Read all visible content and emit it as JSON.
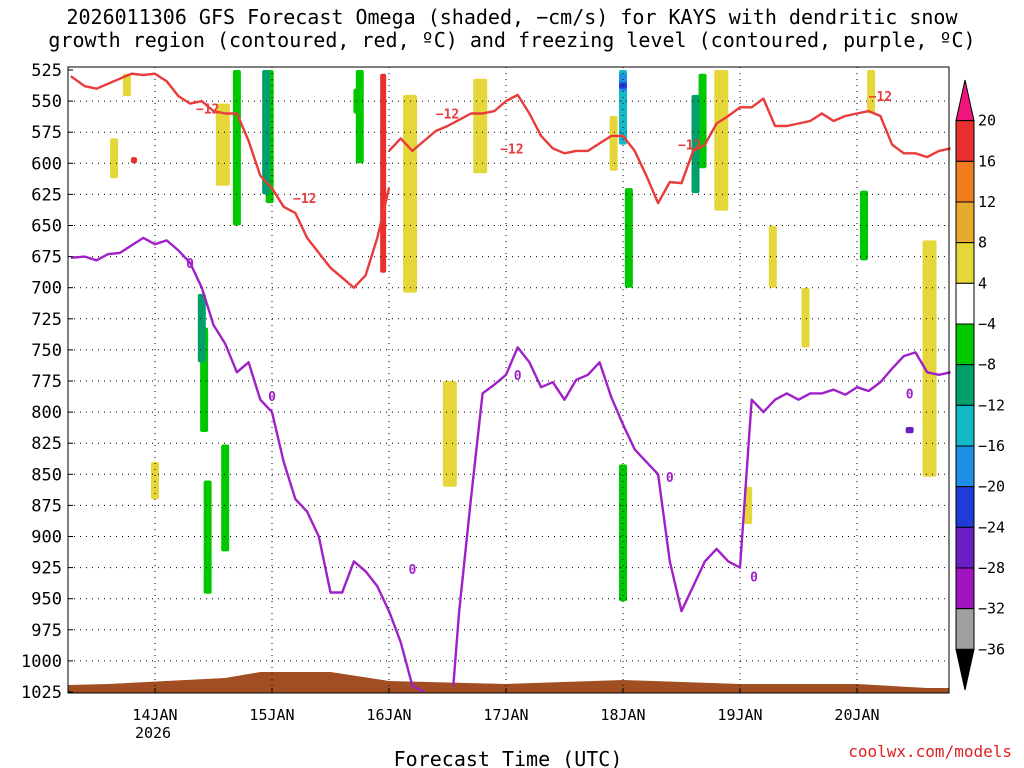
{
  "title": "2026011306 GFS Forecast Omega (shaded, −cm/s) for KAYS with dendritic snow\ngrowth region (contoured, red, ºC) and freezing level (contoured, purple, ºC)",
  "watermark": "coolwx.com/models",
  "chart_data": {
    "type": "heatmap",
    "xlabel": "Forecast Time (UTC)",
    "x_ticks": [
      {
        "label": "14JAN",
        "sublabel": "2026"
      },
      {
        "label": "15JAN",
        "sublabel": ""
      },
      {
        "label": "16JAN",
        "sublabel": ""
      },
      {
        "label": "17JAN",
        "sublabel": ""
      },
      {
        "label": "18JAN",
        "sublabel": ""
      },
      {
        "label": "19JAN",
        "sublabel": ""
      },
      {
        "label": "20JAN",
        "sublabel": ""
      }
    ],
    "x_range_days": [
      -0.74,
      6.82
    ],
    "y_ticks": [
      525,
      550,
      575,
      600,
      625,
      650,
      675,
      700,
      725,
      750,
      775,
      800,
      825,
      850,
      875,
      900,
      925,
      950,
      975,
      1000,
      1025
    ],
    "y_range_hpa": [
      525,
      1025
    ],
    "grid": true,
    "colorbar": {
      "labels": [
        "20",
        "16",
        "12",
        "8",
        "4",
        "−4",
        "−8",
        "−12",
        "−16",
        "−20",
        "−24",
        "−28",
        "−32",
        "−36"
      ],
      "colors": [
        "#f0157d",
        "#e8302e",
        "#f07c1f",
        "#e6aa2c",
        "#e5d63a",
        "#ffffff",
        "#00c800",
        "#009f6c",
        "#14b9c8",
        "#1e8fe6",
        "#1f3cd8",
        "#6a1fc4",
        "#a014c0",
        "#a0a0a0",
        "#000000"
      ]
    },
    "omega_regions": [
      {
        "color": "#e5d63a",
        "cells": [
          [
            -0.24,
            528,
            546
          ],
          [
            0.58,
            552,
            618
          ],
          [
            2.78,
            532,
            608
          ],
          [
            3.92,
            562,
            606
          ],
          [
            4.84,
            525,
            638
          ],
          [
            6.12,
            525,
            560
          ],
          [
            6.62,
            662,
            852
          ],
          [
            5.56,
            700,
            748
          ],
          [
            2.18,
            545,
            704
          ],
          [
            5.28,
            650,
            700
          ],
          [
            5.07,
            860,
            890
          ],
          [
            -0.35,
            580,
            612
          ],
          [
            0.0,
            840,
            870
          ],
          [
            2.52,
            775,
            860
          ]
        ]
      },
      {
        "color": "#00c800",
        "cells": [
          [
            0.7,
            525,
            650
          ],
          [
            0.98,
            525,
            632
          ],
          [
            0.42,
            732,
            816
          ],
          [
            0.6,
            826,
            912
          ],
          [
            1.75,
            525,
            600
          ],
          [
            4.68,
            528,
            604
          ],
          [
            4.05,
            620,
            700
          ],
          [
            4.0,
            842,
            952
          ],
          [
            6.06,
            622,
            678
          ],
          [
            0.45,
            855,
            946
          ],
          [
            1.73,
            540,
            560
          ]
        ]
      },
      {
        "color": "#009f6c",
        "cells": [
          [
            0.95,
            525,
            625
          ],
          [
            4.62,
            545,
            624
          ],
          [
            0.4,
            705,
            760
          ]
        ]
      },
      {
        "color": "#14b9c8",
        "cells": [
          [
            4.0,
            525,
            585
          ]
        ]
      },
      {
        "color": "#1e8fe6",
        "cells": [
          [
            4.0,
            528,
            542
          ]
        ]
      },
      {
        "color": "#e8302e",
        "cells": [
          [
            1.95,
            528,
            688
          ],
          [
            -0.18,
            595,
            600
          ]
        ]
      },
      {
        "color": "#1f3cd8",
        "cells": [
          [
            4.0,
            535,
            540
          ]
        ]
      },
      {
        "color": "#6a1fc4",
        "cells": [
          [
            6.45,
            812,
            817
          ]
        ]
      },
      {
        "color": "#a14e22",
        "cells": [
          [
            1.2,
            1012,
            1025
          ]
        ]
      }
    ],
    "series": [
      {
        "name": "dendritic snow growth region",
        "color": "#ea3b3b",
        "contour_label": "−12",
        "label_points": [
          [
            0.45,
            556
          ],
          [
            1.28,
            628
          ],
          [
            2.5,
            560
          ],
          [
            3.05,
            588
          ],
          [
            4.57,
            585
          ],
          [
            6.2,
            546
          ]
        ],
        "x": [
          -0.72,
          -0.6,
          -0.5,
          -0.4,
          -0.3,
          -0.2,
          -0.1,
          0.0,
          0.1,
          0.2,
          0.3,
          0.4,
          0.5,
          0.6,
          0.7,
          0.8,
          0.9,
          1.0,
          1.1,
          1.2,
          1.3,
          1.4,
          1.5,
          1.6,
          1.7,
          1.8,
          1.9,
          2.0
        ],
        "y": [
          530,
          538,
          540,
          536,
          532,
          528,
          529,
          528,
          534,
          546,
          552,
          550,
          558,
          560,
          560,
          582,
          610,
          620,
          635,
          640,
          660,
          672,
          684,
          692,
          700,
          690,
          660,
          620
        ]
      },
      {
        "name": "dendritic snow growth region (east)",
        "color": "#ea3b3b",
        "x": [
          2.0,
          2.1,
          2.2,
          2.3,
          2.4,
          2.5,
          2.6,
          2.7,
          2.8,
          2.9,
          3.0,
          3.1,
          3.2,
          3.3,
          3.4,
          3.5,
          3.6,
          3.7,
          3.8,
          3.9,
          4.0,
          4.1,
          4.2,
          4.3,
          4.4,
          4.5,
          4.6,
          4.7,
          4.8,
          4.9,
          5.0,
          5.1,
          5.2,
          5.3,
          5.4,
          5.5,
          5.6,
          5.7,
          5.8,
          5.9,
          6.0,
          6.1,
          6.2,
          6.3,
          6.4,
          6.5,
          6.6,
          6.7,
          6.8
        ],
        "y": [
          590,
          580,
          590,
          582,
          574,
          570,
          565,
          560,
          560,
          558,
          550,
          545,
          560,
          578,
          588,
          592,
          590,
          590,
          584,
          578,
          578,
          590,
          610,
          632,
          615,
          616,
          590,
          585,
          568,
          562,
          555,
          555,
          548,
          570,
          570,
          568,
          566,
          560,
          566,
          562,
          560,
          558,
          562,
          585,
          592,
          592,
          595,
          590,
          588
        ]
      },
      {
        "name": "freezing level",
        "color": "#a020c8",
        "contour_label": "0",
        "label_points": [
          [
            0.3,
            680
          ],
          [
            1.0,
            787
          ],
          [
            2.2,
            926
          ],
          [
            3.1,
            770
          ],
          [
            4.4,
            852
          ],
          [
            5.12,
            932
          ],
          [
            6.45,
            785
          ]
        ],
        "x": [
          -0.72,
          -0.6,
          -0.5,
          -0.4,
          -0.3,
          -0.2,
          -0.1,
          0.0,
          0.1,
          0.2,
          0.3,
          0.4,
          0.5,
          0.6,
          0.7,
          0.8,
          0.9,
          1.0,
          1.1,
          1.2,
          1.3,
          1.4,
          1.5,
          1.6,
          1.7,
          1.8,
          1.9,
          2.0,
          2.1,
          2.2,
          2.3
        ],
        "y": [
          676,
          675,
          678,
          673,
          672,
          666,
          660,
          665,
          662,
          670,
          680,
          700,
          730,
          745,
          768,
          760,
          790,
          800,
          840,
          870,
          880,
          900,
          945,
          945,
          920,
          928,
          940,
          960,
          985,
          1020,
          1025
        ]
      },
      {
        "name": "freezing level (east)",
        "color": "#a020c8",
        "x": [
          2.55,
          2.6,
          2.7,
          2.8,
          2.9,
          3.0,
          3.1,
          3.2,
          3.3,
          3.4,
          3.5,
          3.6,
          3.7,
          3.8,
          3.9,
          4.0,
          4.1,
          4.2,
          4.3,
          4.4,
          4.5,
          4.6,
          4.7,
          4.8,
          4.9,
          5.0,
          5.1,
          5.2,
          5.3,
          5.4,
          5.5,
          5.6,
          5.7,
          5.8,
          5.9,
          6.0,
          6.1,
          6.2,
          6.3,
          6.4,
          6.5,
          6.6,
          6.7,
          6.8
        ],
        "y": [
          1020,
          960,
          870,
          785,
          778,
          770,
          748,
          760,
          780,
          776,
          790,
          774,
          770,
          760,
          788,
          810,
          830,
          840,
          850,
          920,
          960,
          940,
          920,
          910,
          920,
          925,
          790,
          800,
          790,
          785,
          790,
          785,
          785,
          782,
          786,
          780,
          783,
          776,
          765,
          755,
          752,
          768,
          770,
          768
        ]
      }
    ]
  }
}
